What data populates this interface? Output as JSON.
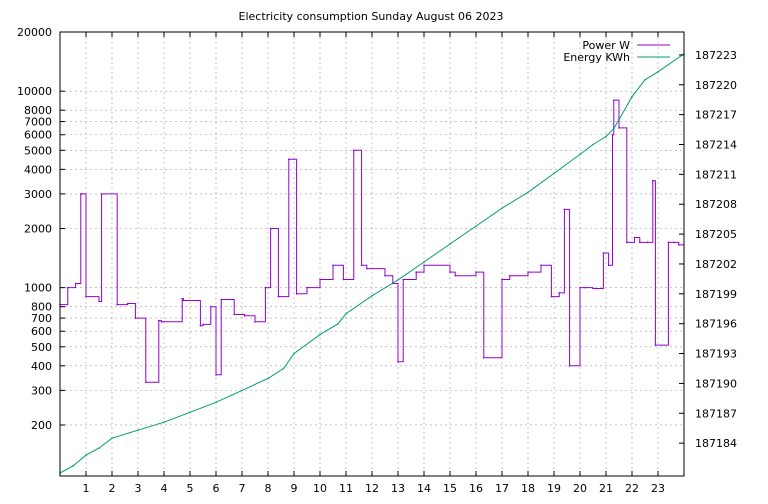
{
  "chart_data": {
    "type": "line",
    "title": "Electricity consumption Sunday August 06 2023",
    "x_ticks": [
      1,
      2,
      3,
      4,
      5,
      6,
      7,
      8,
      9,
      10,
      11,
      12,
      13,
      14,
      15,
      16,
      17,
      18,
      19,
      20,
      21,
      22,
      23
    ],
    "xlim": [
      0,
      24
    ],
    "y_left": {
      "scale": "log",
      "ylim": [
        110,
        20000
      ],
      "ticks": [
        200,
        300,
        400,
        500,
        600,
        700,
        800,
        1000,
        2000,
        3000,
        4000,
        5000,
        6000,
        7000,
        8000,
        10000,
        20000
      ]
    },
    "y_right": {
      "ylim": [
        187180.7,
        187225.3
      ],
      "ticks": [
        187184,
        187187,
        187190,
        187193,
        187196,
        187199,
        187202,
        187205,
        187208,
        187211,
        187214,
        187217,
        187220,
        187223
      ]
    },
    "grid": true,
    "legend_position": "top-right",
    "colors": {
      "power": "#9400d3",
      "energy": "#009e73"
    },
    "series": [
      {
        "name": "Power W",
        "axis": "left",
        "x": [
          0,
          0.3,
          0.6,
          0.8,
          0.85,
          1.0,
          1.5,
          1.6,
          2.2,
          2.6,
          2.9,
          3.3,
          3.8,
          3.9,
          4.7,
          4.75,
          5.4,
          5.5,
          5.8,
          6.0,
          6.2,
          6.7,
          7.1,
          7.5,
          7.9,
          8.1,
          8.4,
          8.8,
          9.1,
          9.5,
          10.0,
          10.5,
          10.9,
          11.3,
          11.6,
          11.8,
          12.5,
          12.8,
          13.0,
          13.2,
          13.7,
          14.0,
          15.0,
          15.2,
          16.0,
          16.3,
          17.0,
          17.3,
          18.0,
          18.5,
          18.9,
          19.2,
          19.4,
          19.6,
          20.0,
          20.2,
          20.5,
          20.9,
          21.1,
          21.25,
          21.3,
          21.5,
          21.8,
          22.1,
          22.3,
          22.6,
          22.8,
          22.9,
          23.4,
          23.6,
          23.8,
          24.0
        ],
        "values": [
          820,
          1000,
          1050,
          3000,
          3000,
          900,
          850,
          3000,
          820,
          830,
          700,
          330,
          680,
          670,
          880,
          860,
          640,
          650,
          800,
          360,
          870,
          730,
          720,
          670,
          1000,
          2000,
          900,
          4500,
          930,
          1000,
          1100,
          1300,
          1100,
          5000,
          1300,
          1250,
          1150,
          1050,
          420,
          1100,
          1200,
          1300,
          1200,
          1150,
          1200,
          440,
          1100,
          1150,
          1200,
          1300,
          900,
          940,
          2500,
          400,
          1000,
          1000,
          990,
          1500,
          1300,
          6000,
          9000,
          6500,
          1700,
          1800,
          1700,
          1700,
          3500,
          510,
          1700,
          1700,
          1650,
          3900
        ]
      },
      {
        "name": "Energy KWh",
        "axis": "right",
        "x": [
          0,
          0.5,
          1.0,
          1.5,
          2.0,
          3.0,
          4.0,
          5.0,
          6.0,
          7.0,
          8.0,
          8.6,
          9.0,
          10.0,
          10.7,
          11.0,
          12.0,
          13.0,
          14.0,
          15.0,
          16.0,
          17.0,
          18.0,
          19.0,
          20.0,
          20.5,
          21.0,
          21.3,
          21.5,
          22.0,
          22.5,
          23.0,
          24.0
        ],
        "values": [
          187181.0,
          187181.7,
          187182.8,
          187183.5,
          187184.5,
          187185.3,
          187186.1,
          187187.1,
          187188.1,
          187189.3,
          187190.5,
          187191.5,
          187193.0,
          187194.9,
          187196.0,
          187197.0,
          187198.8,
          187200.4,
          187202.2,
          187204.0,
          187205.8,
          187207.6,
          187209.2,
          187211.1,
          187213.0,
          187214.0,
          187214.8,
          187215.6,
          187216.5,
          187218.8,
          187220.5,
          187221.3,
          187223.1
        ]
      }
    ]
  }
}
